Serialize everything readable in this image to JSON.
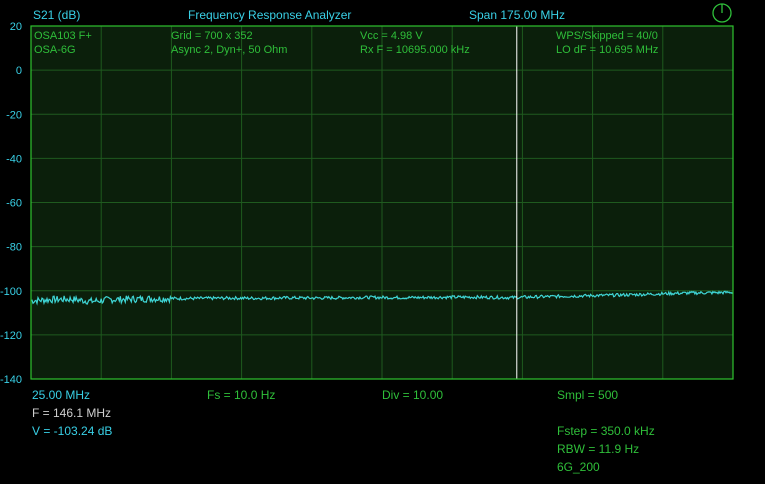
{
  "header": {
    "y_label": "S21 (dB)",
    "title": "Frequency Response Analyzer",
    "span": "Span 175.00 MHz"
  },
  "info": {
    "device": "OSA103 F+",
    "module": "OSA-6G",
    "grid": "Grid = 700 x 352",
    "mode": "Async 2,  Dyn+, 50 Ohm",
    "vcc": "Vcc = 4.98 V",
    "rxf": "Rx F = 10695.000 kHz",
    "wps": "WPS/Skipped  = 40/0",
    "lodf": "LO dF = 10.695 MHz"
  },
  "footer": {
    "start_freq": "25.00 MHz",
    "fs": "Fs = 10.0 Hz",
    "div": "Div = 10.00",
    "smpl": "Smpl = 500",
    "marker_f": "F = 146.1 MHz",
    "marker_v": "V = -103.24 dB",
    "fstep": "Fstep = 350.0 kHz",
    "rbw": "RBW = 11.9 Hz",
    "profile": "6G_200"
  },
  "icons": {
    "power": "power-icon"
  },
  "colors": {
    "background": "#000000",
    "plot_background": "#0b1f0b",
    "grid": "#1f5a1f",
    "frame": "#2ec32e",
    "trace": "#3fd6d6",
    "cursor": "#ffffff",
    "text_cyan": "#39d0e6",
    "text_green": "#2fbf3a"
  },
  "chart_data": {
    "type": "line",
    "ylabel": "S21 (dB)",
    "ylim": [
      -140,
      20
    ],
    "y_ticks": [
      "20",
      "0",
      "-20",
      "-40",
      "-60",
      "-80",
      "-100",
      "-120",
      "-140"
    ],
    "xlim_mhz": [
      25,
      200
    ],
    "x_divisions": 10,
    "grid": true,
    "cursor_mhz": 146.1,
    "series": [
      {
        "x_mhz": [
          25,
          30,
          35,
          40,
          45,
          50,
          55,
          60,
          65,
          70,
          75,
          80,
          85,
          90,
          95,
          100,
          105,
          110,
          115,
          120,
          125,
          130,
          135,
          140,
          145,
          150,
          155,
          160,
          165,
          170,
          175,
          180,
          185,
          190,
          195,
          200
        ],
        "y_db": [
          -104.5,
          -104.0,
          -103.8,
          -104.8,
          -104.0,
          -103.8,
          -103.6,
          -103.5,
          -103.5,
          -103.4,
          -103.3,
          -103.4,
          -103.3,
          -103.2,
          -103.3,
          -103.2,
          -103.1,
          -103.0,
          -103.1,
          -103.1,
          -103.0,
          -102.9,
          -102.9,
          -103.0,
          -103.1,
          -102.8,
          -102.6,
          -102.4,
          -102.2,
          -102.0,
          -101.8,
          -101.5,
          -101.2,
          -101.0,
          -100.9,
          -100.7
        ]
      }
    ]
  }
}
